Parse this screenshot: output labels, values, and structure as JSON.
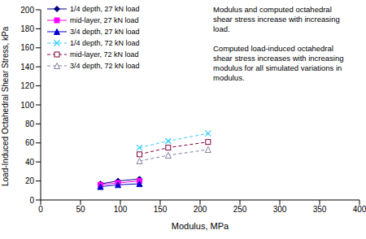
{
  "chart_data": {
    "type": "line",
    "x_label": "Modulus, MPa",
    "y_label": "Load-Induced Octahedral Shear Stress, kPa",
    "xlim": [
      0,
      400
    ],
    "xticks": [
      0,
      50,
      100,
      150,
      200,
      250,
      300,
      350,
      400
    ],
    "ylim": [
      0,
      200
    ],
    "yticks": [
      0,
      20,
      40,
      60,
      80,
      100,
      120,
      140,
      160,
      180,
      200
    ],
    "grid": false,
    "legend": "upper left",
    "annotations": [
      [
        "Modulus and computed octahedral",
        "shear stress increase with increasing",
        "load."
      ],
      [
        "Computed load-induced octahedral",
        "shear stress increases with increasing",
        "modulus for all simulated variations in",
        "modulus."
      ]
    ],
    "series": [
      {
        "name": "1/4 depth, 27 kN load",
        "color": "#000080",
        "marker": "diamond",
        "line_style": "solid",
        "x": [
          75,
          97,
          124
        ],
        "values": [
          17,
          20,
          22
        ]
      },
      {
        "name": "mid-layer, 27 kN load",
        "color": "#ff00ff",
        "marker": "square",
        "line_style": "solid",
        "x": [
          75,
          97,
          124
        ],
        "values": [
          16,
          18,
          20
        ]
      },
      {
        "name": "3/4 depth, 27 kN load",
        "color": "#0000cc",
        "marker": "triangle",
        "line_style": "solid",
        "x": [
          75,
          97,
          124
        ],
        "values": [
          14,
          16,
          17
        ]
      },
      {
        "name": "1/4 depth, 72 kN load",
        "color": "#33ccff",
        "marker": "x",
        "line_style": "dashed",
        "x": [
          124,
          160,
          210
        ],
        "values": [
          55,
          62,
          70
        ]
      },
      {
        "name": "mid-layer, 72 kN load",
        "color": "#800040",
        "marker": "open_square",
        "line_style": "dashed",
        "x": [
          124,
          160,
          210
        ],
        "values": [
          48,
          55,
          61
        ]
      },
      {
        "name": "3/4 depth, 72 kN load",
        "color": "#7f7f9f",
        "marker": "open_triangle",
        "line_style": "dashed",
        "x": [
          124,
          160,
          210
        ],
        "values": [
          41,
          47,
          53
        ]
      }
    ]
  }
}
